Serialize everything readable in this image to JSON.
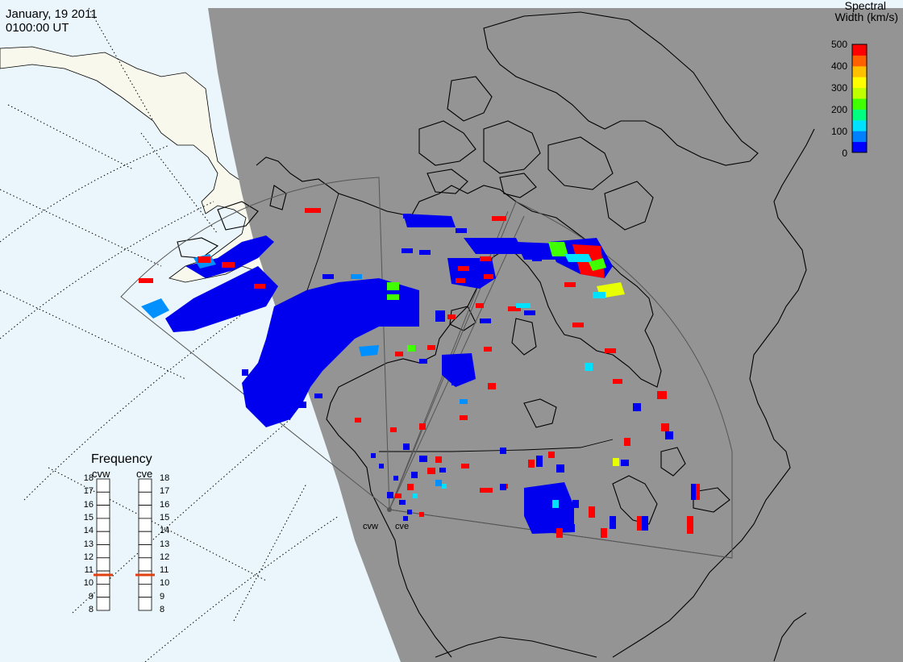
{
  "header": {
    "date": "January, 19 2011",
    "time": "0100:00 UT"
  },
  "colorbar": {
    "title_line1": "Spectral",
    "title_line2": "Width (km/s)",
    "ticks": [
      "500",
      "400",
      "300",
      "200",
      "100",
      "0"
    ],
    "colors": [
      "#0000ff",
      "#0080ff",
      "#00e0ff",
      "#00ff80",
      "#40ff00",
      "#c0ff00",
      "#ffff00",
      "#ffc000",
      "#ff6000",
      "#ff0000"
    ]
  },
  "frequency": {
    "title": "Frequency",
    "radar_left": "cvw",
    "radar_right": "cve",
    "ticks": [
      "18",
      "17",
      "16",
      "15",
      "14",
      "13",
      "12",
      "11",
      "10",
      "9",
      "8"
    ],
    "left_value_mhz": 10.7,
    "right_value_mhz": 10.7,
    "marker_color": "#e04010"
  },
  "radars": {
    "left_label": "cvw",
    "right_label": "cve"
  },
  "map": {
    "night_color": "#949494",
    "ocean_color": "#eaf6fb",
    "land_color": "#f8f8ec",
    "scatter_blue": "#0000ee",
    "scatter_red": "#ff0000"
  }
}
